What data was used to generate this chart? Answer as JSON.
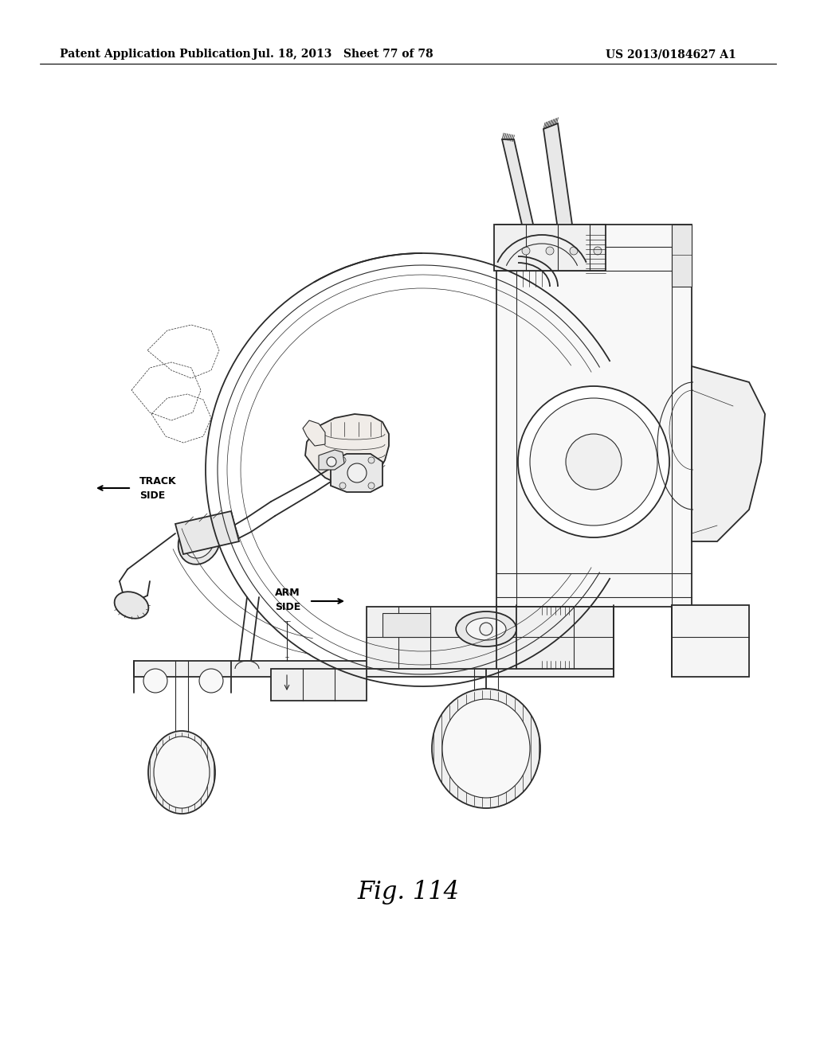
{
  "background_color": "#ffffff",
  "header_left": "Patent Application Publication",
  "header_center": "Jul. 18, 2013   Sheet 77 of 78",
  "header_right": "US 2013/0184627 A1",
  "figure_label": "Fig. 114",
  "line_color": "#2a2a2a",
  "label_track_side": "TRACK\nSIDE",
  "label_arm_side": "ARM\nSIDE"
}
